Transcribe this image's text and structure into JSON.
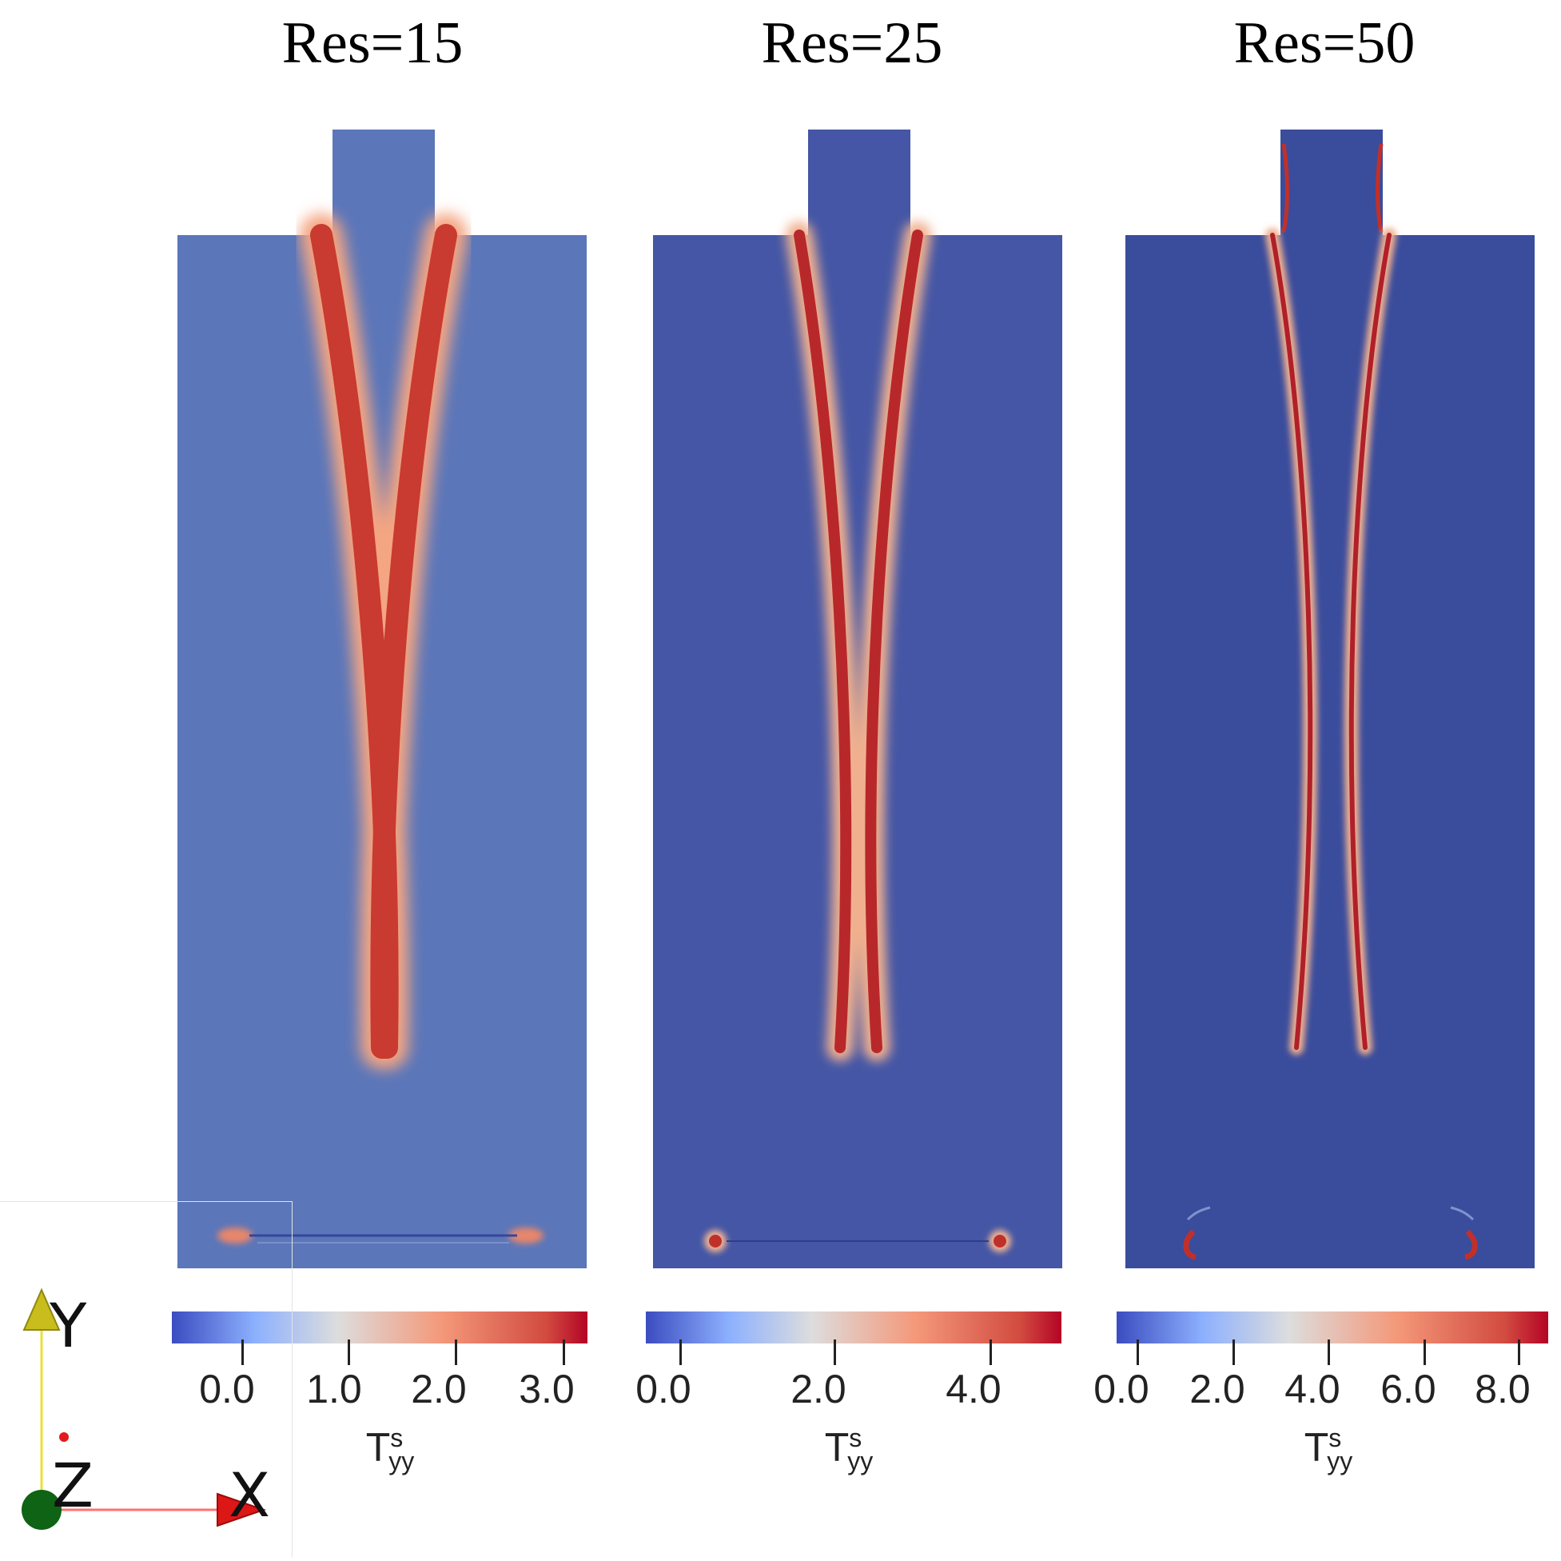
{
  "panels": [
    {
      "title": "Res=15",
      "colorbar": {
        "ticks": [
          "0.0",
          "1.0",
          "2.0",
          "3.0"
        ],
        "label": "T",
        "label_sup": "s",
        "label_sub": "yy"
      }
    },
    {
      "title": "Res=25",
      "colorbar": {
        "ticks": [
          "0.0",
          "2.0",
          "4.0"
        ],
        "label": "T",
        "label_sup": "s",
        "label_sub": "yy"
      }
    },
    {
      "title": "Res=50",
      "colorbar": {
        "ticks": [
          "0.0",
          "2.0",
          "4.0",
          "6.0",
          "8.0"
        ],
        "label": "T",
        "label_sup": "s",
        "label_sub": "yy"
      }
    }
  ],
  "orientation_axes": {
    "y_label": "Y",
    "z_label": "Z",
    "x_label": "X"
  },
  "colors": {
    "background_res15": "#5b76b9",
    "background_res25": "#4456a5",
    "background_res50": "#3a4c9c",
    "band": "#c0392b",
    "cmap_low": "#3b4cc0",
    "cmap_mid": "#dddddd",
    "cmap_high": "#b40426"
  }
}
